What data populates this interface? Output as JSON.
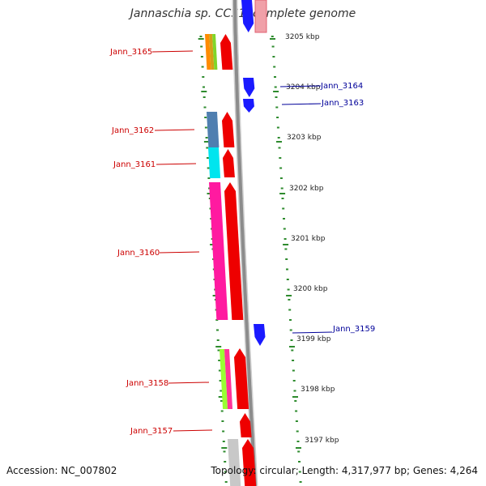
{
  "title": "Jannaschia sp. CCS1, complete genome",
  "accession_text": "Accession: NC_007802",
  "topology_text": "Topology: circular; Length: 4,317,977 bp; Genes: 4,264",
  "colors": {
    "backbone": "#8c8c8c",
    "forward_cds": "#ee0000",
    "reverse_cds": "#1a1aff",
    "left_label": "#cc0000",
    "right_label": "#000099",
    "tick": "#2e8b2e"
  },
  "kbp_labels": [
    "3205 kbp",
    "3204 kbp",
    "3203 kbp",
    "3202 kbp",
    "3201 kbp",
    "3200 kbp",
    "3199 kbp",
    "3198 kbp",
    "3197 kbp"
  ],
  "left_labels": [
    "Jann_3165",
    "Jann_3162",
    "Jann_3161",
    "Jann_3160",
    "Jann_3158",
    "Jann_3157"
  ],
  "right_labels": [
    "Jann_3164",
    "Jann_3163",
    "Jann_3159"
  ]
}
